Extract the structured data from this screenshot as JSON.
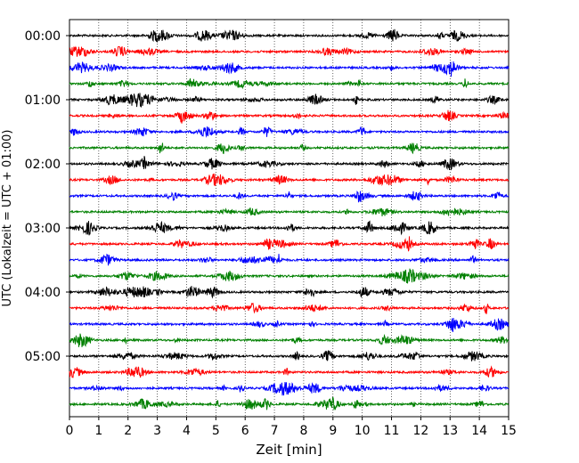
{
  "chart_data": {
    "type": "line",
    "title": "",
    "xlabel": "Zeit  [min]",
    "ylabel": "UTC (Lokalzeit = UTC + 01:00)",
    "xlim": [
      0,
      15
    ],
    "x_ticks": [
      "0",
      "1",
      "2",
      "3",
      "4",
      "5",
      "6",
      "7",
      "8",
      "9",
      "10",
      "11",
      "12",
      "13",
      "14",
      "15"
    ],
    "y_tick_labels": [
      "00:00",
      "01:00",
      "02:00",
      "03:00",
      "04:00",
      "05:00"
    ],
    "trace_interval_min": 15,
    "trace_count": 24,
    "trace_colors": [
      "#000000",
      "#ff0000",
      "#0000ff",
      "#008000"
    ],
    "grid": "vertical dotted at each minute",
    "legend": "none"
  }
}
